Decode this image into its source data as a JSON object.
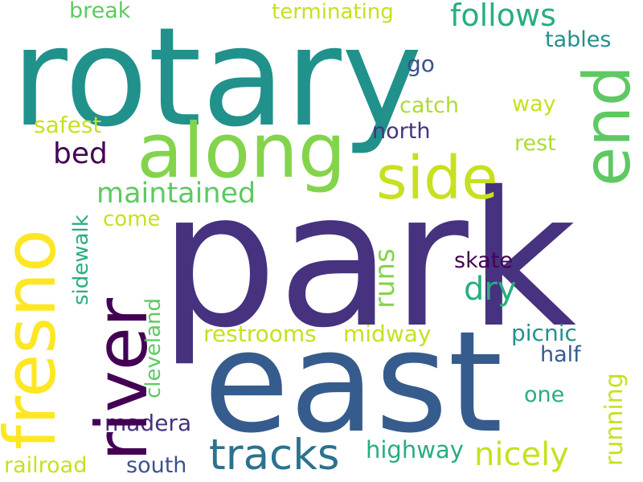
{
  "words": {
    "park": "park",
    "rotary": "rotary",
    "east": "east",
    "along": "along",
    "river": "river",
    "fresno": "fresno",
    "end": "end",
    "side": "side",
    "tracks": "tracks",
    "maintained": "maintained",
    "follows": "follows",
    "terminating": "terminating",
    "break": "break",
    "tables": "tables",
    "go": "go",
    "catch": "catch",
    "way": "way",
    "safest": "safest",
    "north": "north",
    "rest": "rest",
    "bed": "bed",
    "runs": "runs",
    "dry": "dry",
    "come": "come",
    "sidewalk": "sidewalk",
    "skate": "skate",
    "cleveland": "cleveland",
    "restrooms": "restrooms",
    "midway": "midway",
    "picnic": "picnic",
    "half": "half",
    "running": "running",
    "one": "one",
    "madera": "madera",
    "nicely": "nicely",
    "highway": "highway",
    "railroad": "railroad",
    "south": "south"
  },
  "colors": {
    "dark_purple": "#440154",
    "indigo": "#46327e",
    "blue_violet": "#3b528b",
    "steel_blue": "#365c8d",
    "teal_blue": "#2c728e",
    "teal": "#21918c",
    "sea_green": "#28ae80",
    "green": "#5ec962",
    "light_green": "#84d44b",
    "yellow_green": "#addc30",
    "lime_yellow": "#c8e020",
    "yellow": "#fde725"
  }
}
